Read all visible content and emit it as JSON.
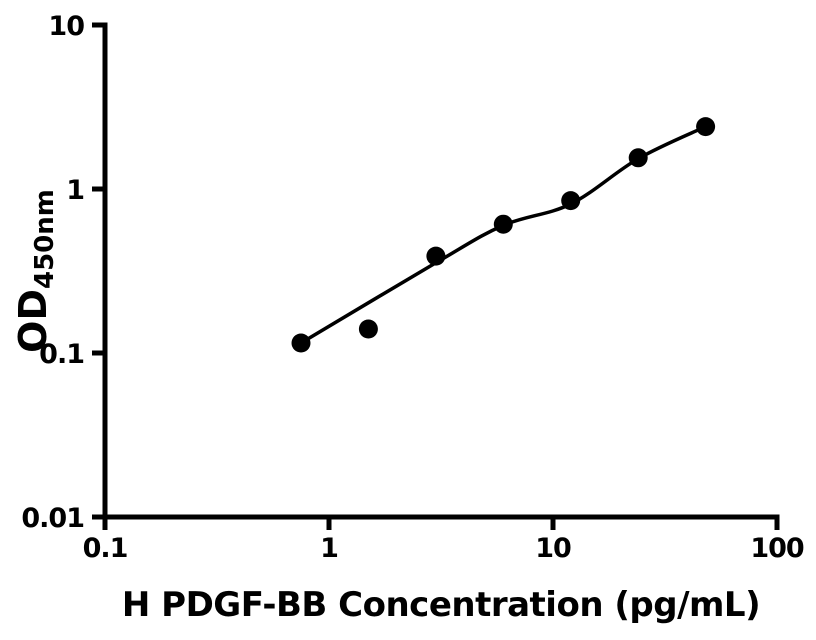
{
  "chart_data": {
    "type": "scatter",
    "title": "",
    "xlabel": "H PDGF-BB Concentration (pg/mL)",
    "ylabel": "OD",
    "ylabel_subscript": "450nm",
    "x_scale": "log10",
    "y_scale": "log10",
    "xlim": [
      0.1,
      100
    ],
    "ylim": [
      0.01,
      10
    ],
    "grid": false,
    "legend": false,
    "axis_color": "#000000",
    "background_color": "#ffffff",
    "x_ticks": [
      {
        "value": 0.1,
        "label": "0.1"
      },
      {
        "value": 1,
        "label": "1"
      },
      {
        "value": 10,
        "label": "10"
      },
      {
        "value": 100,
        "label": "100"
      }
    ],
    "y_ticks": [
      {
        "value": 0.01,
        "label": "0.01"
      },
      {
        "value": 0.1,
        "label": "0.1"
      },
      {
        "value": 1,
        "label": "1"
      },
      {
        "value": 10,
        "label": "10"
      }
    ],
    "series": [
      {
        "name": "standard-curve-points",
        "marker": "filled-circle",
        "marker_color": "#000000",
        "points": [
          {
            "x": 0.75,
            "y": 0.115
          },
          {
            "x": 1.5,
            "y": 0.14
          },
          {
            "x": 3,
            "y": 0.39
          },
          {
            "x": 6,
            "y": 0.61
          },
          {
            "x": 12,
            "y": 0.85
          },
          {
            "x": 24,
            "y": 1.55
          },
          {
            "x": 48,
            "y": 2.4
          }
        ]
      }
    ],
    "fit_line": {
      "name": "four-parameter-fit-curve",
      "color": "#000000",
      "anchors": [
        {
          "x": 0.75,
          "y": 0.115
        },
        {
          "x": 3,
          "y": 0.355
        },
        {
          "x": 6,
          "y": 0.6
        },
        {
          "x": 12,
          "y": 0.81
        },
        {
          "x": 24,
          "y": 1.53
        },
        {
          "x": 48,
          "y": 2.4
        }
      ]
    }
  }
}
